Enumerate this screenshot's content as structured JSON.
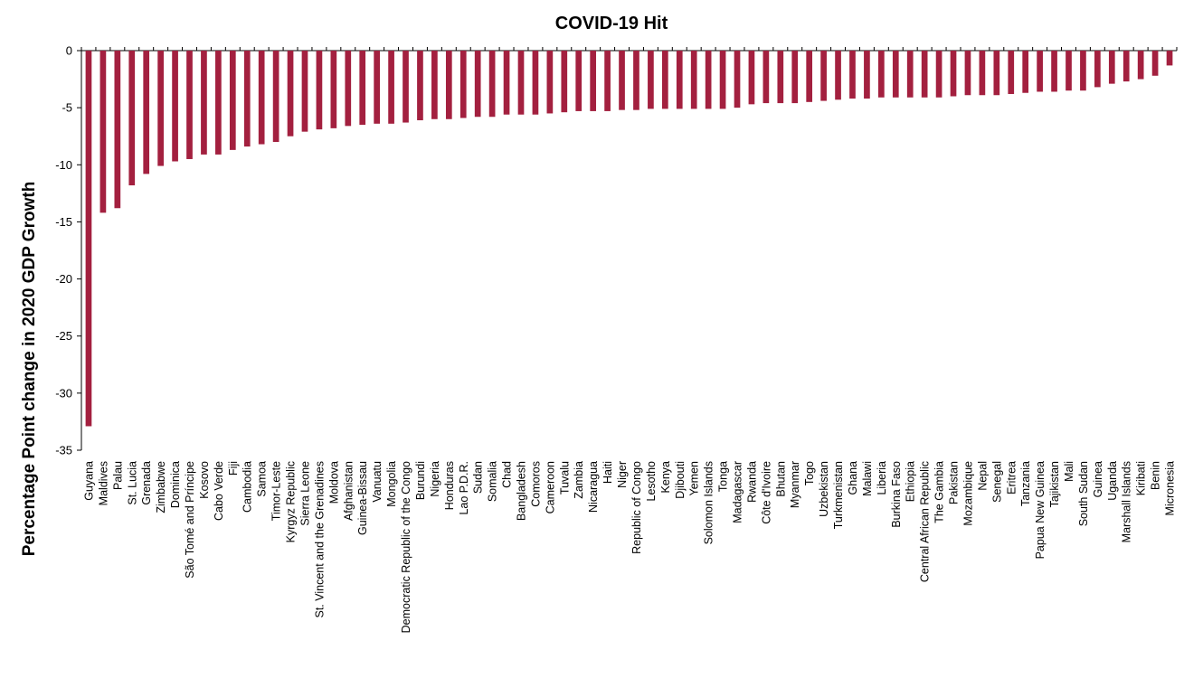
{
  "chart_data": {
    "type": "bar",
    "title": "COVID-19 Hit",
    "ylabel": "Percentage Point change in 2020 GDP Growth",
    "xlabel": "",
    "ylim": [
      -35,
      0
    ],
    "yticks": [
      0,
      -5,
      -10,
      -15,
      -20,
      -25,
      -30,
      -35
    ],
    "grid": false,
    "bar_color": "#a3203f",
    "categories": [
      "Guyana",
      "Maldives",
      "Palau",
      "St. Lucia",
      "Grenada",
      "Zimbabwe",
      "Dominica",
      "São Tomé and Príncipe",
      "Kosovo",
      "Cabo Verde",
      "Fiji",
      "Cambodia",
      "Samoa",
      "Timor-Leste",
      "Kyrgyz Republic",
      "Sierra Leone",
      "St. Vincent and the Grenadines",
      "Moldova",
      "Afghanistan",
      "Guinea-Bissau",
      "Vanuatu",
      "Mongolia",
      "Democratic Republic of the Congo",
      "Burundi",
      "Nigeria",
      "Honduras",
      "Lao P.D.R.",
      "Sudan",
      "Somalia",
      "Chad",
      "Bangladesh",
      "Comoros",
      "Cameroon",
      "Tuvalu",
      "Zambia",
      "Nicaragua",
      "Haiti",
      "Niger",
      "Republic of Congo",
      "Lesotho",
      "Kenya",
      "Djibouti",
      "Yemen",
      "Solomon Islands",
      "Tonga",
      "Madagascar",
      "Rwanda",
      "Côte d'Ivoire",
      "Bhutan",
      "Myanmar",
      "Togo",
      "Uzbekistan",
      "Turkmenistan",
      "Ghana",
      "Malawi",
      "Liberia",
      "Burkina Faso",
      "Ethiopia",
      "Central African Republic",
      "The Gambia",
      "Pakistan",
      "Mozambique",
      "Nepal",
      "Senegal",
      "Eritrea",
      "Tanzania",
      "Papua New Guinea",
      "Tajikistan",
      "Mali",
      "South Sudan",
      "Guinea",
      "Uganda",
      "Marshall Islands",
      "Kiribati",
      "Benin",
      "Micronesia"
    ],
    "values": [
      -32.9,
      -14.2,
      -13.8,
      -11.8,
      -10.8,
      -10.1,
      -9.7,
      -9.5,
      -9.1,
      -9.1,
      -8.7,
      -8.4,
      -8.2,
      -8.0,
      -7.5,
      -7.1,
      -6.9,
      -6.8,
      -6.6,
      -6.5,
      -6.4,
      -6.4,
      -6.3,
      -6.1,
      -6.0,
      -6.0,
      -5.9,
      -5.8,
      -5.8,
      -5.6,
      -5.6,
      -5.6,
      -5.5,
      -5.4,
      -5.3,
      -5.3,
      -5.3,
      -5.2,
      -5.2,
      -5.1,
      -5.1,
      -5.1,
      -5.1,
      -5.1,
      -5.1,
      -5.0,
      -4.7,
      -4.6,
      -4.6,
      -4.6,
      -4.5,
      -4.4,
      -4.3,
      -4.2,
      -4.2,
      -4.1,
      -4.1,
      -4.1,
      -4.1,
      -4.1,
      -4.0,
      -3.9,
      -3.9,
      -3.9,
      -3.8,
      -3.7,
      -3.6,
      -3.6,
      -3.5,
      -3.5,
      -3.2,
      -2.9,
      -2.7,
      -2.5,
      -2.2,
      -1.3
    ]
  }
}
